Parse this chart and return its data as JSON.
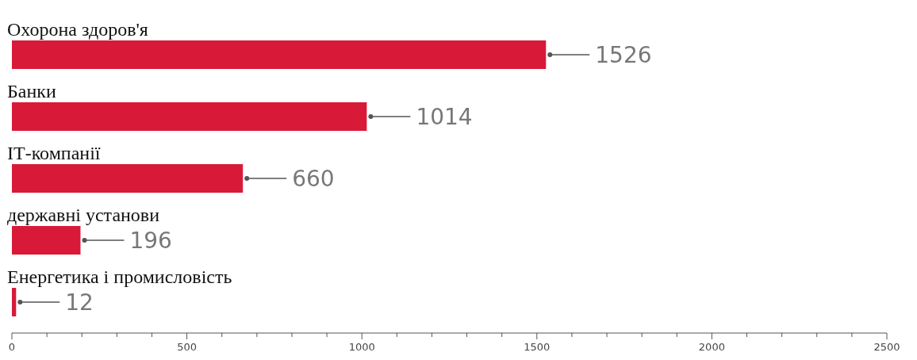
{
  "chart_data": {
    "type": "bar",
    "orientation": "horizontal",
    "categories": [
      "Охорона здоров'я",
      "Банки",
      "ІТ-компанії",
      "державні установи",
      "Енергетика і промисловість"
    ],
    "values": [
      1526,
      1014,
      660,
      196,
      12
    ],
    "color": "#d81a38",
    "xlim": [
      0,
      2500
    ],
    "xticks": [
      0,
      {
        "value": 100,
        "label": null
      },
      {
        "value": 200,
        "label": null
      },
      {
        "value": 300,
        "label": null
      },
      {
        "value": 400,
        "label": null
      },
      500,
      {
        "value": 600,
        "label": null
      },
      {
        "value": 700,
        "label": null
      },
      {
        "value": 800,
        "label": null
      },
      {
        "value": 900,
        "label": null
      },
      1000,
      {
        "value": 1100,
        "label": null
      },
      {
        "value": 1200,
        "label": null
      },
      {
        "value": 1300,
        "label": null
      },
      {
        "value": 1400,
        "label": null
      },
      1500,
      {
        "value": 1600,
        "label": null
      },
      {
        "value": 1700,
        "label": null
      },
      {
        "value": 1800,
        "label": null
      },
      {
        "value": 1900,
        "label": null
      },
      2000,
      {
        "value": 2100,
        "label": null
      },
      {
        "value": 2200,
        "label": null
      },
      {
        "value": 2300,
        "label": null
      },
      {
        "value": 2400,
        "label": null
      },
      2500
    ],
    "data_labels": true,
    "grid": false,
    "legend": false
  }
}
